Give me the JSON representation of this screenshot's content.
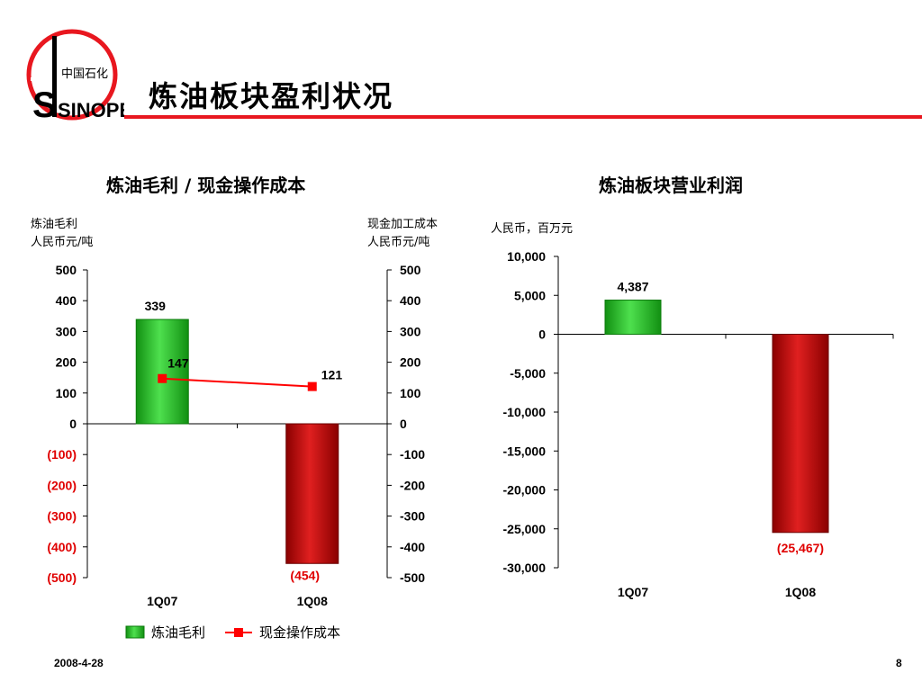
{
  "page": {
    "title": "炼油板块盈利状况",
    "date": "2008-4-28",
    "page_number": "8"
  },
  "logo": {
    "brand": "SINOPEC",
    "chinese": "中国石化",
    "color": "#e8171f"
  },
  "chart_data": [
    {
      "type": "bar",
      "title": "炼油毛利 / 现金操作成本",
      "ylabel_left": [
        "炼油毛利",
        "人民币元/吨"
      ],
      "ylabel_right": [
        "现金加工成本",
        "人民币元/吨"
      ],
      "categories": [
        "1Q07",
        "1Q08"
      ],
      "ylim": [
        -500,
        500
      ],
      "left_ticks": [
        "500",
        "400",
        "300",
        "200",
        "100",
        "0",
        "(100)",
        "(200)",
        "(300)",
        "(400)",
        "(500)"
      ],
      "right_ticks": [
        "500",
        "400",
        "300",
        "200",
        "100",
        "0",
        "-100",
        "-200",
        "-300",
        "-400",
        "-500"
      ],
      "series": [
        {
          "name": "炼油毛利",
          "kind": "bar",
          "values": [
            339,
            -454
          ],
          "labels": [
            "339",
            "(454)"
          ]
        },
        {
          "name": "现金操作成本",
          "kind": "line",
          "values": [
            147,
            121
          ],
          "labels": [
            "147",
            "121"
          ]
        }
      ],
      "legend": "bottom"
    },
    {
      "type": "bar",
      "title": "炼油板块营业利润",
      "ylabel": "人民币，百万元",
      "categories": [
        "1Q07",
        "1Q08"
      ],
      "ylim": [
        -30000,
        10000
      ],
      "ticks": [
        "10,000",
        "5,000",
        "0",
        "-5,000",
        "-10,000",
        "-15,000",
        "-20,000",
        "-25,000",
        "-30,000"
      ],
      "series": [
        {
          "name": "",
          "values": [
            4387,
            -25467
          ],
          "labels": [
            "4,387",
            "(25,467)"
          ]
        }
      ]
    }
  ],
  "colors": {
    "positive": "#22b022",
    "negative": "#c00000",
    "negative_text": "#e00000",
    "line": "#ff0000",
    "accent": "#e8171f"
  }
}
